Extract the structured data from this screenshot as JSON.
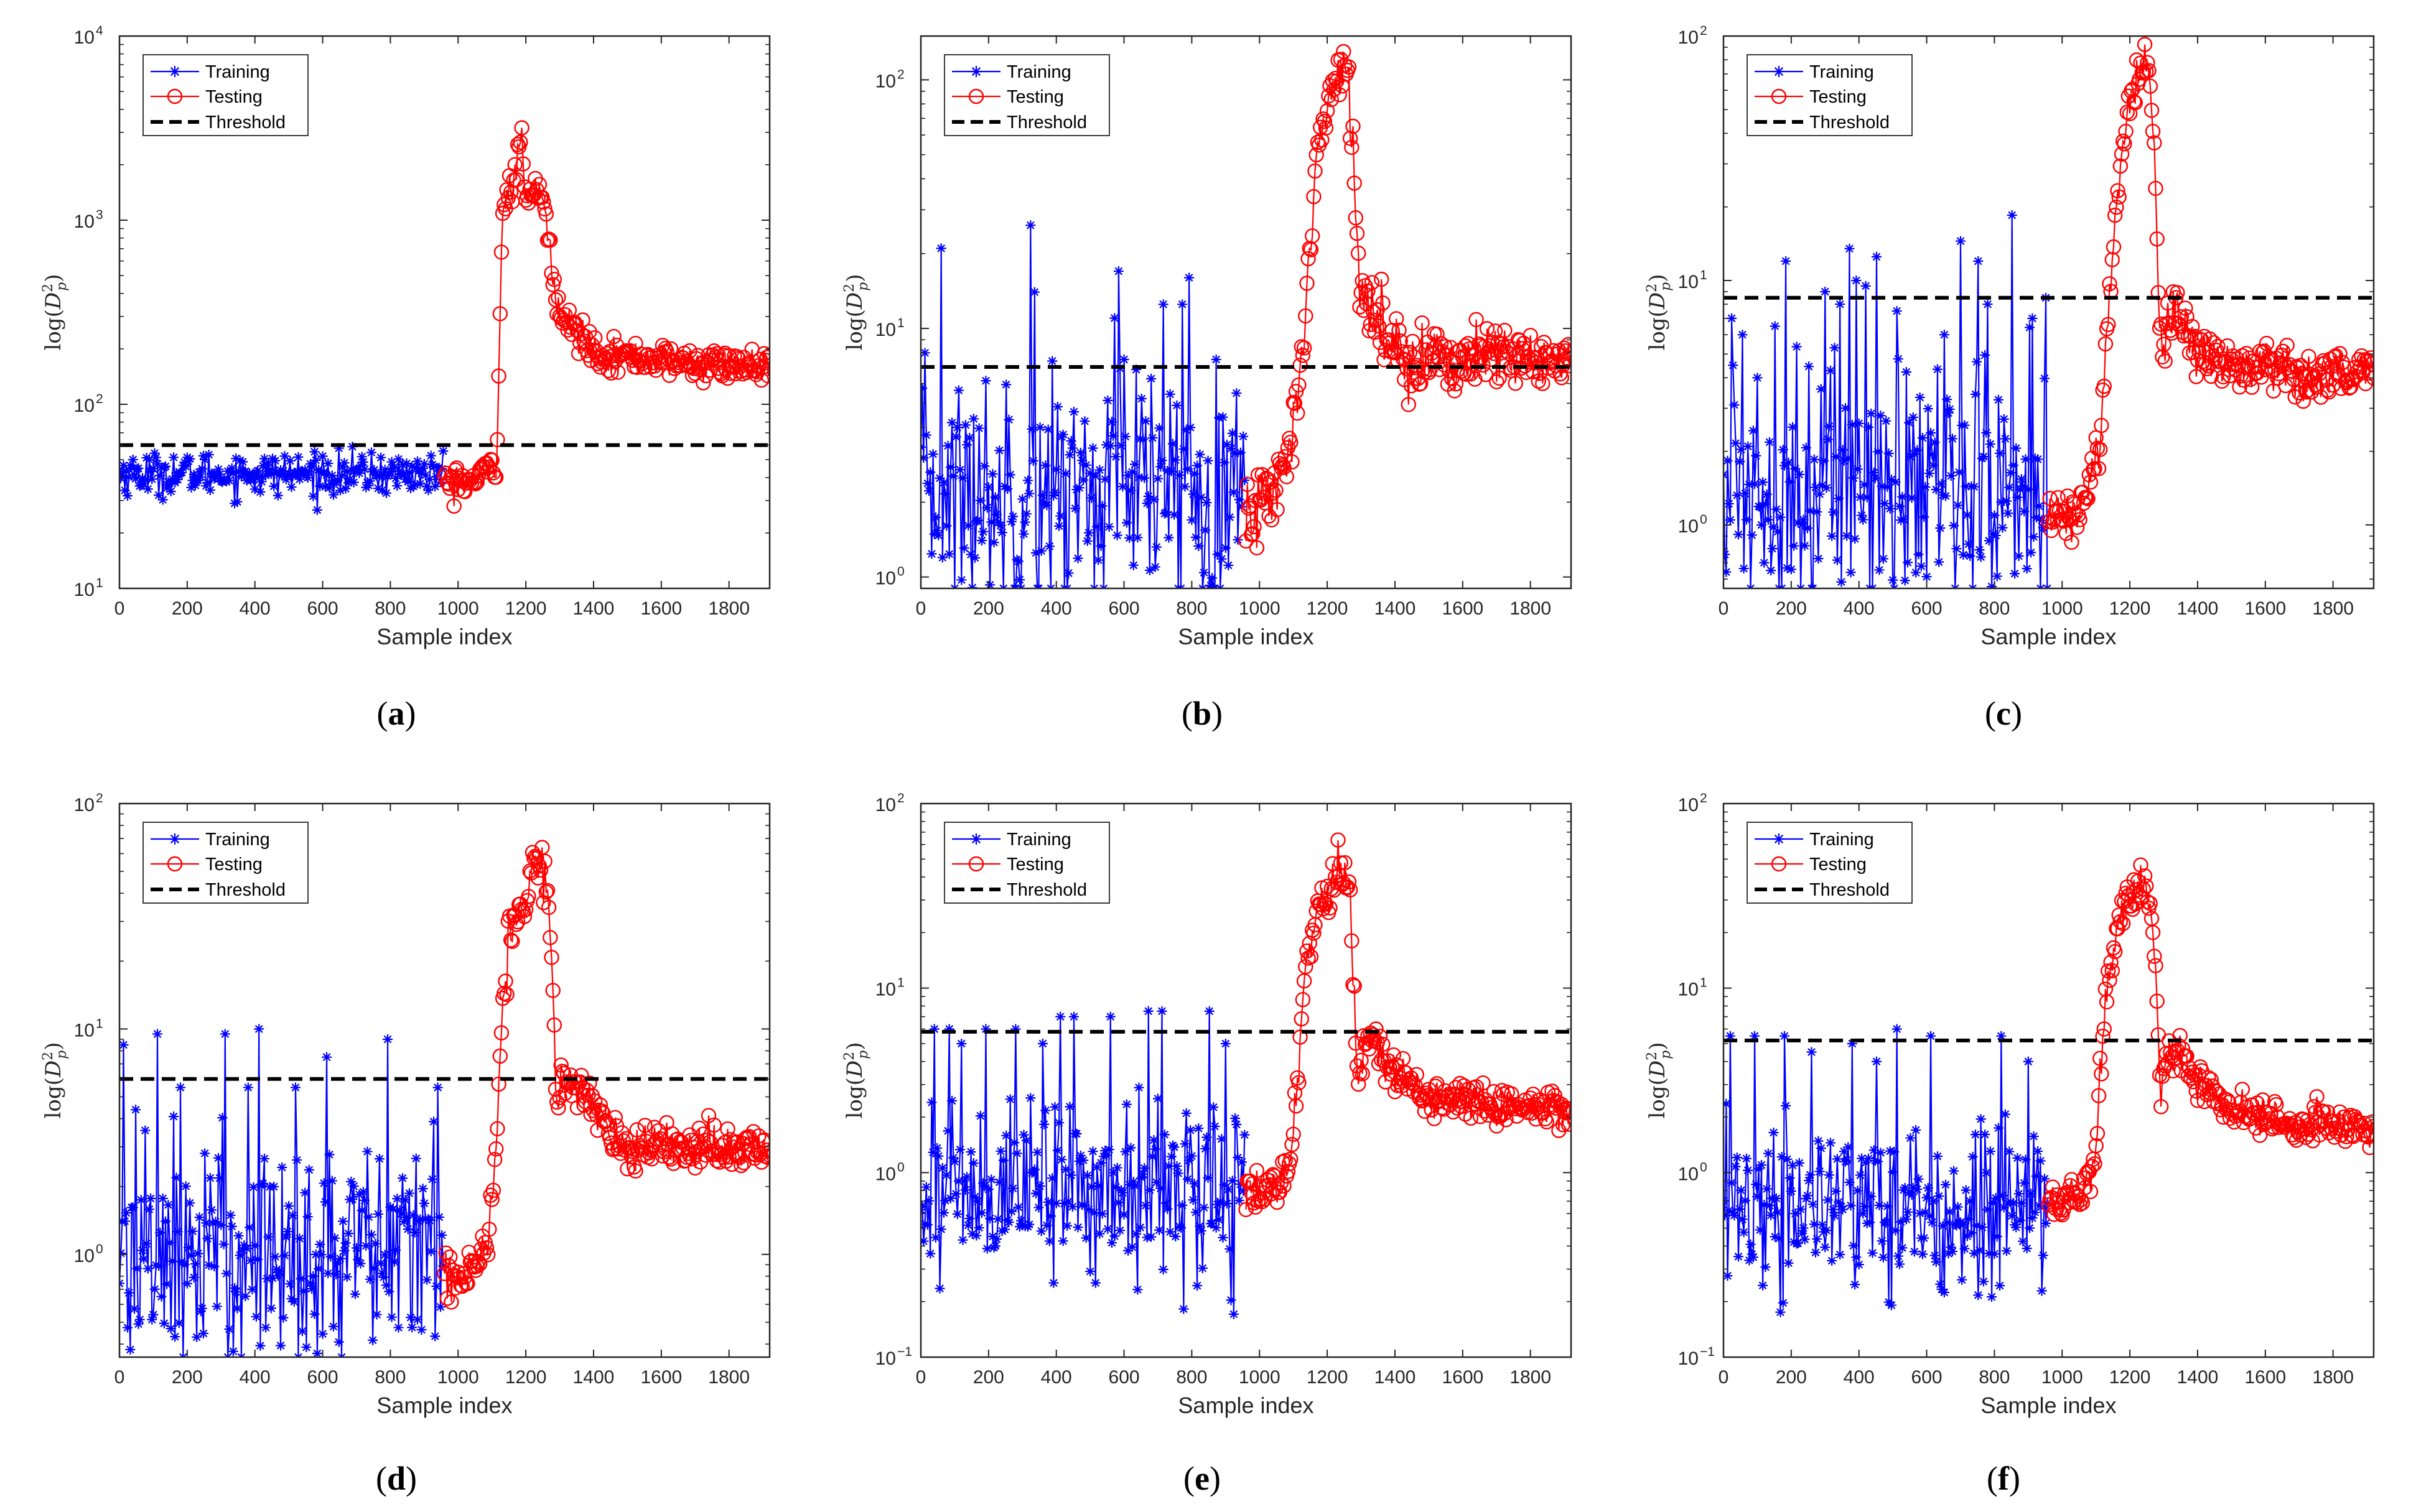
{
  "colors": {
    "training": "#0000ff",
    "testing": "#ff0000",
    "threshold": "#000000",
    "axis": "#262626"
  },
  "chart_data": [
    {
      "panel": "(a)",
      "type": "line",
      "yscale": "log",
      "xlabel": "Sample index",
      "ylabel": "log(D_p^2)",
      "xlim": [
        0,
        1920
      ],
      "ylim": [
        10,
        10000
      ],
      "xticks": [
        0,
        200,
        400,
        600,
        800,
        1000,
        1200,
        1400,
        1600,
        1800
      ],
      "yticks": [
        {
          "v": 10,
          "base": "10",
          "exp": "1"
        },
        {
          "v": 100,
          "base": "10",
          "exp": "2"
        },
        {
          "v": 1000,
          "base": "10",
          "exp": "3"
        },
        {
          "v": 10000,
          "base": "10",
          "exp": "4"
        }
      ],
      "legend": {
        "position": "top-left",
        "entries": [
          "Training",
          "Testing",
          "Threshold"
        ]
      },
      "threshold": 60,
      "training": {
        "x_range": [
          0,
          960
        ],
        "base": 42,
        "spread": 0.13,
        "spikes": []
      },
      "testing": {
        "x_range": [
          960,
          1920
        ],
        "spread": 0.1,
        "knots": [
          [
            960,
            38
          ],
          [
            1050,
            38
          ],
          [
            1115,
            50
          ],
          [
            1130,
            1100
          ],
          [
            1150,
            1500
          ],
          [
            1160,
            1300
          ],
          [
            1180,
            2700
          ],
          [
            1190,
            2500
          ],
          [
            1205,
            1100
          ],
          [
            1220,
            1400
          ],
          [
            1245,
            1400
          ],
          [
            1265,
            900
          ],
          [
            1285,
            400
          ],
          [
            1300,
            300
          ],
          [
            1360,
            240
          ],
          [
            1420,
            190
          ],
          [
            1500,
            180
          ],
          [
            1600,
            175
          ],
          [
            1700,
            165
          ],
          [
            1920,
            160
          ]
        ]
      }
    },
    {
      "panel": "(b)",
      "type": "line",
      "yscale": "log",
      "xlabel": "Sample index",
      "ylabel": "log(D_p^2)",
      "xlim": [
        0,
        1920
      ],
      "ylim": [
        0.9,
        150
      ],
      "xticks": [
        0,
        200,
        400,
        600,
        800,
        1000,
        1200,
        1400,
        1600,
        1800
      ],
      "yticks": [
        {
          "v": 1,
          "base": "10",
          "exp": "0"
        },
        {
          "v": 10,
          "base": "10",
          "exp": "1"
        },
        {
          "v": 100,
          "base": "10",
          "exp": "2"
        }
      ],
      "legend": {
        "position": "top-left",
        "entries": [
          "Training",
          "Testing",
          "Threshold"
        ]
      },
      "threshold": 7,
      "training": {
        "x_range": [
          0,
          960
        ],
        "base": 2.2,
        "spread": 0.55,
        "spikes": [
          [
            60,
            21
          ],
          [
            325,
            26
          ],
          [
            335,
            14
          ],
          [
            570,
            11
          ],
          [
            585,
            17
          ],
          [
            600,
            7.5
          ],
          [
            715,
            12.5
          ],
          [
            770,
            12.5
          ],
          [
            790,
            16
          ],
          [
            870,
            7.5
          ]
        ]
      },
      "testing": {
        "x_range": [
          960,
          1920
        ],
        "spread": 0.15,
        "knots": [
          [
            960,
            1.8
          ],
          [
            1040,
            2.2
          ],
          [
            1080,
            3
          ],
          [
            1110,
            5
          ],
          [
            1130,
            9
          ],
          [
            1150,
            25
          ],
          [
            1170,
            50
          ],
          [
            1190,
            65
          ],
          [
            1210,
            80
          ],
          [
            1230,
            110
          ],
          [
            1250,
            130
          ],
          [
            1265,
            100
          ],
          [
            1275,
            60
          ],
          [
            1285,
            30
          ],
          [
            1295,
            14
          ],
          [
            1320,
            12
          ],
          [
            1360,
            10
          ],
          [
            1420,
            8
          ],
          [
            1500,
            7.5
          ],
          [
            1600,
            7.5
          ],
          [
            1700,
            7.5
          ],
          [
            1920,
            7.5
          ]
        ]
      }
    },
    {
      "panel": "(c)",
      "type": "line",
      "yscale": "log",
      "xlabel": "Sample index",
      "ylabel": "log(D_p^2)",
      "xlim": [
        0,
        1920
      ],
      "ylim": [
        0.55,
        100
      ],
      "xticks": [
        0,
        200,
        400,
        600,
        800,
        1000,
        1200,
        1400,
        1600,
        1800
      ],
      "yticks": [
        {
          "v": 1,
          "base": "10",
          "exp": "0"
        },
        {
          "v": 10,
          "base": "10",
          "exp": "1"
        },
        {
          "v": 100,
          "base": "10",
          "exp": "2"
        }
      ],
      "legend": {
        "position": "top-left",
        "entries": [
          "Training",
          "Testing",
          "Threshold"
        ]
      },
      "threshold": 8.5,
      "training": {
        "x_range": [
          0,
          960
        ],
        "base": 1.4,
        "spread": 0.6,
        "spikes": [
          [
            25,
            7
          ],
          [
            55,
            6
          ],
          [
            100,
            4
          ],
          [
            150,
            6.5
          ],
          [
            185,
            12
          ],
          [
            300,
            9
          ],
          [
            345,
            8
          ],
          [
            370,
            13.5
          ],
          [
            390,
            10
          ],
          [
            420,
            9.5
          ],
          [
            450,
            12.5
          ],
          [
            510,
            7.5
          ],
          [
            650,
            6
          ],
          [
            700,
            14.5
          ],
          [
            750,
            12
          ],
          [
            780,
            8
          ],
          [
            850,
            18.5
          ],
          [
            910,
            7
          ],
          [
            950,
            8.5
          ]
        ]
      },
      "testing": {
        "x_range": [
          960,
          1920
        ],
        "spread": 0.12,
        "knots": [
          [
            960,
            1.0
          ],
          [
            1040,
            1.1
          ],
          [
            1090,
            1.6
          ],
          [
            1115,
            2.5
          ],
          [
            1140,
            9
          ],
          [
            1160,
            18
          ],
          [
            1180,
            40
          ],
          [
            1200,
            50
          ],
          [
            1220,
            65
          ],
          [
            1240,
            80
          ],
          [
            1260,
            70
          ],
          [
            1275,
            30
          ],
          [
            1285,
            8
          ],
          [
            1295,
            4.5
          ],
          [
            1310,
            7
          ],
          [
            1340,
            8
          ],
          [
            1400,
            5
          ],
          [
            1500,
            4.5
          ],
          [
            1600,
            4.5
          ],
          [
            1700,
            4.2
          ],
          [
            1920,
            4.2
          ]
        ]
      }
    },
    {
      "panel": "(d)",
      "type": "line",
      "yscale": "log",
      "xlabel": "Sample index",
      "ylabel": "log(D_p^2)",
      "xlim": [
        0,
        1920
      ],
      "ylim": [
        0.35,
        100
      ],
      "xticks": [
        0,
        200,
        400,
        600,
        800,
        1000,
        1200,
        1400,
        1600,
        1800
      ],
      "yticks": [
        {
          "v": 1,
          "base": "10",
          "exp": "0"
        },
        {
          "v": 10,
          "base": "10",
          "exp": "1"
        },
        {
          "v": 100,
          "base": "10",
          "exp": "2"
        }
      ],
      "legend": {
        "position": "top-left",
        "entries": [
          "Training",
          "Testing",
          "Threshold"
        ]
      },
      "threshold": 6,
      "training": {
        "x_range": [
          0,
          960
        ],
        "base": 1.0,
        "spread": 0.6,
        "spikes": [
          [
            10,
            8.5
          ],
          [
            110,
            9.5
          ],
          [
            180,
            5.5
          ],
          [
            310,
            9.5
          ],
          [
            380,
            5.5
          ],
          [
            410,
            10
          ],
          [
            520,
            5.5
          ],
          [
            610,
            7.5
          ],
          [
            790,
            9
          ],
          [
            940,
            5.5
          ]
        ]
      },
      "testing": {
        "x_range": [
          960,
          1920
        ],
        "spread": 0.12,
        "knots": [
          [
            960,
            0.8
          ],
          [
            1050,
            0.9
          ],
          [
            1090,
            1.2
          ],
          [
            1110,
            2.5
          ],
          [
            1130,
            12
          ],
          [
            1150,
            25
          ],
          [
            1170,
            35
          ],
          [
            1200,
            35
          ],
          [
            1220,
            55
          ],
          [
            1240,
            55
          ],
          [
            1265,
            40
          ],
          [
            1280,
            15
          ],
          [
            1290,
            4
          ],
          [
            1310,
            6
          ],
          [
            1350,
            6
          ],
          [
            1400,
            4.5
          ],
          [
            1500,
            3
          ],
          [
            1600,
            3
          ],
          [
            1700,
            3
          ],
          [
            1920,
            3
          ]
        ]
      }
    },
    {
      "panel": "(e)",
      "type": "line",
      "yscale": "log",
      "xlabel": "Sample index",
      "ylabel": "log(D_p^2)",
      "xlim": [
        0,
        1920
      ],
      "ylim": [
        0.1,
        100
      ],
      "xticks": [
        0,
        200,
        400,
        600,
        800,
        1000,
        1200,
        1400,
        1600,
        1800
      ],
      "yticks": [
        {
          "v": 0.1,
          "base": "10",
          "exp": "−1"
        },
        {
          "v": 1,
          "base": "10",
          "exp": "0"
        },
        {
          "v": 10,
          "base": "10",
          "exp": "1"
        },
        {
          "v": 100,
          "base": "10",
          "exp": "2"
        }
      ],
      "legend": {
        "position": "top-left",
        "entries": [
          "Training",
          "Testing",
          "Threshold"
        ]
      },
      "threshold": 5.8,
      "training": {
        "x_range": [
          0,
          960
        ],
        "base": 0.8,
        "spread": 0.55,
        "spikes": [
          [
            40,
            6
          ],
          [
            85,
            6
          ],
          [
            120,
            5
          ],
          [
            190,
            6
          ],
          [
            280,
            6
          ],
          [
            360,
            5
          ],
          [
            410,
            7
          ],
          [
            450,
            7
          ],
          [
            560,
            7
          ],
          [
            670,
            7.5
          ],
          [
            710,
            7.5
          ],
          [
            850,
            7.5
          ],
          [
            900,
            5
          ]
        ]
      },
      "testing": {
        "x_range": [
          960,
          1920
        ],
        "spread": 0.12,
        "knots": [
          [
            960,
            0.75
          ],
          [
            1050,
            0.85
          ],
          [
            1090,
            1.1
          ],
          [
            1110,
            2.5
          ],
          [
            1130,
            10
          ],
          [
            1150,
            18
          ],
          [
            1170,
            25
          ],
          [
            1200,
            30
          ],
          [
            1220,
            40
          ],
          [
            1245,
            45
          ],
          [
            1265,
            35
          ],
          [
            1280,
            10
          ],
          [
            1290,
            3
          ],
          [
            1310,
            5
          ],
          [
            1350,
            5
          ],
          [
            1400,
            3.5
          ],
          [
            1500,
            2.5
          ],
          [
            1600,
            2.5
          ],
          [
            1700,
            2.3
          ],
          [
            1920,
            2.3
          ]
        ]
      }
    },
    {
      "panel": "(f)",
      "type": "line",
      "yscale": "log",
      "xlabel": "Sample index",
      "ylabel": "log(D_p^2)",
      "xlim": [
        0,
        1920
      ],
      "ylim": [
        0.1,
        100
      ],
      "xticks": [
        0,
        200,
        400,
        600,
        800,
        1000,
        1200,
        1400,
        1600,
        1800
      ],
      "yticks": [
        {
          "v": 0.1,
          "base": "10",
          "exp": "−1"
        },
        {
          "v": 1,
          "base": "10",
          "exp": "0"
        },
        {
          "v": 10,
          "base": "10",
          "exp": "1"
        },
        {
          "v": 100,
          "base": "10",
          "exp": "2"
        }
      ],
      "legend": {
        "position": "top-left",
        "entries": [
          "Training",
          "Testing",
          "Threshold"
        ]
      },
      "threshold": 5.2,
      "training": {
        "x_range": [
          0,
          960
        ],
        "base": 0.65,
        "spread": 0.55,
        "spikes": [
          [
            20,
            5.5
          ],
          [
            90,
            5.5
          ],
          [
            180,
            5.5
          ],
          [
            260,
            4.5
          ],
          [
            380,
            5
          ],
          [
            450,
            4
          ],
          [
            510,
            6
          ],
          [
            610,
            5.5
          ],
          [
            820,
            5.5
          ],
          [
            900,
            4
          ]
        ]
      },
      "testing": {
        "x_range": [
          960,
          1920
        ],
        "spread": 0.12,
        "knots": [
          [
            960,
            0.65
          ],
          [
            1050,
            0.75
          ],
          [
            1090,
            1.0
          ],
          [
            1110,
            2.5
          ],
          [
            1130,
            9
          ],
          [
            1150,
            15
          ],
          [
            1170,
            25
          ],
          [
            1200,
            30
          ],
          [
            1220,
            35
          ],
          [
            1245,
            35
          ],
          [
            1265,
            25
          ],
          [
            1280,
            8
          ],
          [
            1290,
            2.5
          ],
          [
            1310,
            4.5
          ],
          [
            1350,
            4.5
          ],
          [
            1400,
            3
          ],
          [
            1500,
            2.2
          ],
          [
            1600,
            2.0
          ],
          [
            1700,
            1.8
          ],
          [
            1920,
            1.8
          ]
        ]
      }
    }
  ]
}
